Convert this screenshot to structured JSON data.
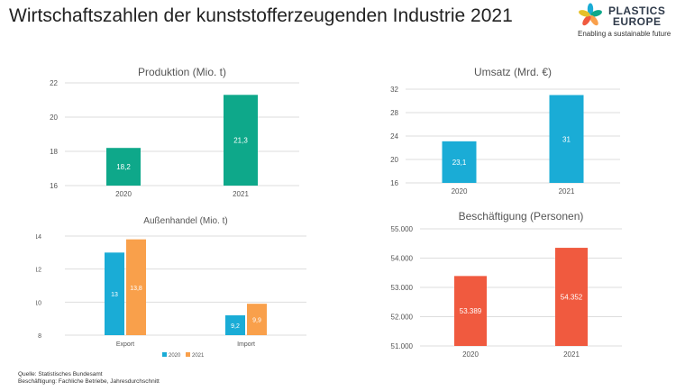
{
  "title": "Wirtschaftszahlen der kunststofferzeugenden Industrie 2021",
  "logo": {
    "line1": "PLASTICS",
    "line2": "EUROPE",
    "tagline": "Enabling a sustainable future"
  },
  "footer": {
    "source": "Quelle: Statistisches Bundesamt",
    "note": "Beschäftigung: Fachliche Betriebe, Jahresdurchschnitt"
  },
  "chart_data": [
    {
      "id": "produktion",
      "type": "bar",
      "title": "Produktion (Mio. t)",
      "categories": [
        "2020",
        "2021"
      ],
      "values": [
        18.2,
        21.3
      ],
      "value_labels": [
        "18,2",
        "21,3"
      ],
      "ylim": [
        16,
        22
      ],
      "ticks": [
        16,
        18,
        20,
        22
      ],
      "tick_labels": [
        "16",
        "18",
        "20",
        "22"
      ],
      "color": "#0EA88A",
      "grid": true
    },
    {
      "id": "umsatz",
      "type": "bar",
      "title": "Umsatz (Mrd. €)",
      "categories": [
        "2020",
        "2021"
      ],
      "values": [
        23.1,
        31
      ],
      "value_labels": [
        "23,1",
        "31"
      ],
      "ylim": [
        16,
        32
      ],
      "ticks": [
        16,
        20,
        24,
        28,
        32
      ],
      "tick_labels": [
        "16",
        "20",
        "24",
        "28",
        "32"
      ],
      "color": "#1AACD6",
      "grid": true
    },
    {
      "id": "aussenhandel",
      "type": "bar",
      "title": "Außenhandel (Mio. t)",
      "categories": [
        "Export",
        "Import"
      ],
      "series": [
        {
          "name": "2020",
          "values": [
            13,
            9.2
          ],
          "value_labels": [
            "13",
            "9,2"
          ],
          "color": "#1AACD6"
        },
        {
          "name": "2021",
          "values": [
            13.8,
            9.9
          ],
          "value_labels": [
            "13,8",
            "9,9"
          ],
          "color": "#F9A04B"
        }
      ],
      "ylim": [
        8,
        14
      ],
      "ticks": [
        8,
        10,
        12,
        14
      ],
      "tick_labels": [
        "8",
        "10",
        "12",
        "14"
      ],
      "legend": "bottom",
      "grid": true
    },
    {
      "id": "beschaeftigung",
      "type": "bar",
      "title": "Beschäftigung (Personen)",
      "categories": [
        "2020",
        "2021"
      ],
      "values": [
        53389,
        54352
      ],
      "value_labels": [
        "53.389",
        "54.352"
      ],
      "ylim": [
        51000,
        55000
      ],
      "ticks": [
        51000,
        52000,
        53000,
        54000,
        55000
      ],
      "tick_labels": [
        "51.000",
        "52.000",
        "53.000",
        "54.000",
        "55.000"
      ],
      "color": "#F05A3F",
      "grid": true
    }
  ]
}
